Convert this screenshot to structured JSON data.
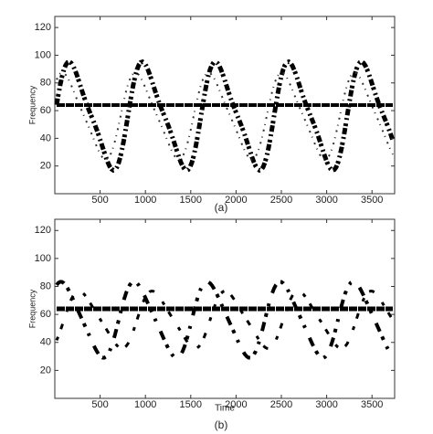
{
  "chart_data": [
    {
      "type": "image",
      "ylabel": "Frequency",
      "caption": "(a)",
      "xlim": [
        0,
        3750
      ],
      "ylim": [
        0,
        128
      ],
      "xticks": [
        500,
        1000,
        1500,
        2000,
        2500,
        3000,
        3500
      ],
      "yticks": [
        20,
        40,
        60,
        80,
        100,
        120
      ]
    },
    {
      "type": "image",
      "ylabel": "Frequency",
      "xlabel": "Time",
      "caption": "(b)",
      "xlim": [
        0,
        3750
      ],
      "ylim": [
        0,
        128
      ],
      "xticks": [
        500,
        1000,
        1500,
        2000,
        2500,
        3000,
        3500
      ],
      "yticks": [
        20,
        40,
        60,
        80,
        100,
        120
      ]
    }
  ]
}
